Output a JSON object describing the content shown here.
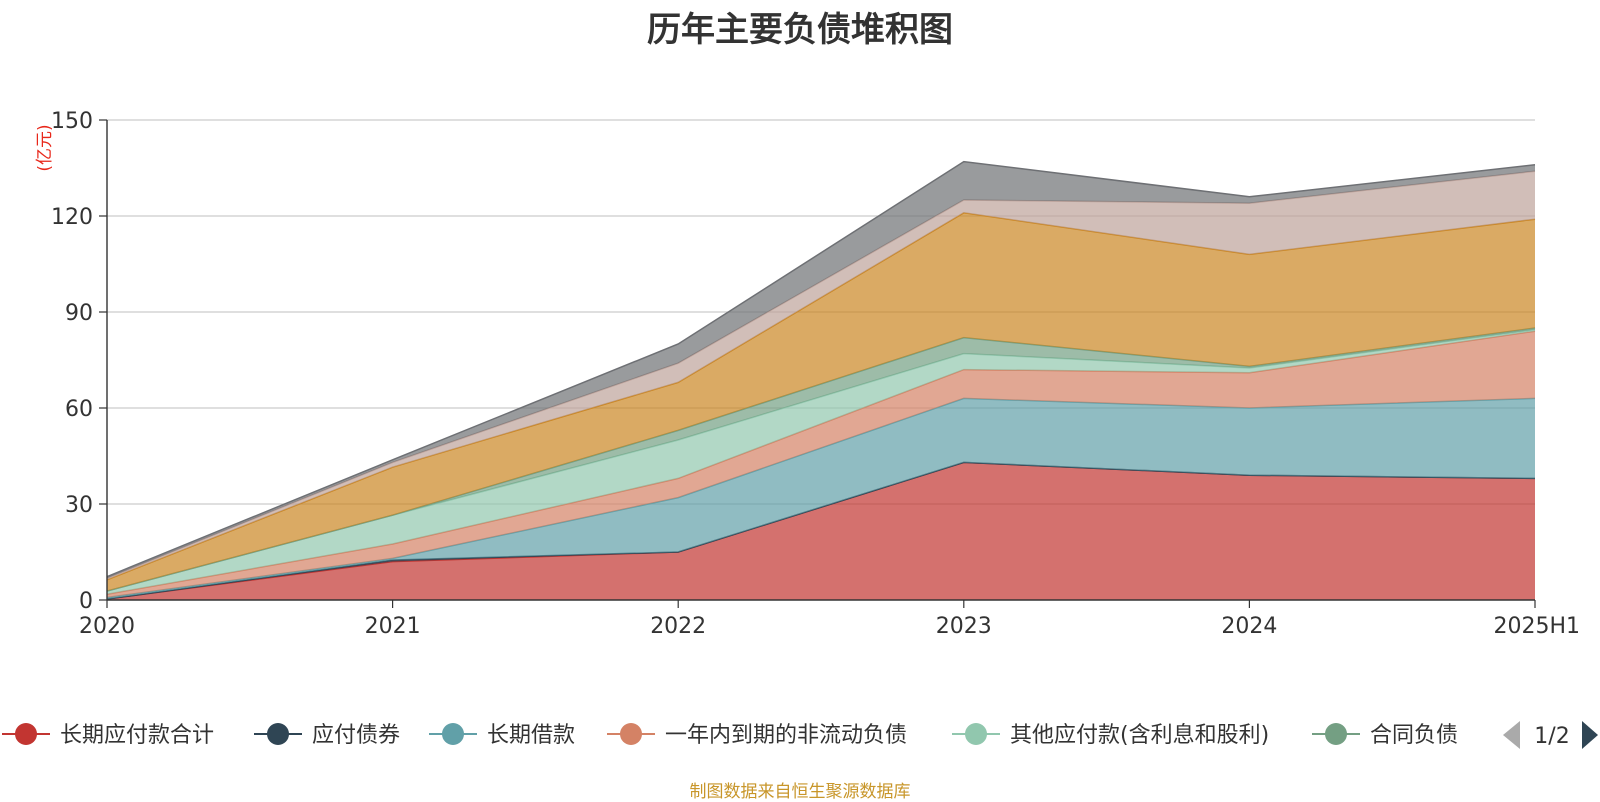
{
  "chart_data": {
    "type": "area",
    "stacked": true,
    "title": "历年主要负债堆积图",
    "ylabel": "(亿元)",
    "xlabel": "",
    "categories": [
      "2020",
      "2021",
      "2022",
      "2023",
      "2024",
      "2025H1"
    ],
    "ylim": [
      0,
      150
    ],
    "yticks": [
      0,
      30,
      60,
      90,
      120,
      150
    ],
    "grid": true,
    "legend_position": "bottom",
    "legend_page": "1/2",
    "series": [
      {
        "name": "长期应付款合计",
        "color": "#c23531",
        "values": [
          0.3,
          12,
          15,
          43,
          39,
          38
        ]
      },
      {
        "name": "应付债券",
        "color": "#2f4554",
        "values": [
          0,
          0.5,
          0,
          0,
          0,
          0
        ]
      },
      {
        "name": "长期借款",
        "color": "#61a0a8",
        "values": [
          0.5,
          0.5,
          17,
          20,
          21,
          25
        ]
      },
      {
        "name": "一年内到期的非流动负债",
        "color": "#d48265",
        "values": [
          1,
          4.5,
          6,
          9,
          11,
          21
        ]
      },
      {
        "name": "其他应付款(含利息和股利)",
        "color": "#91c7ae",
        "values": [
          1,
          9,
          12,
          5,
          1.5,
          0.5
        ]
      },
      {
        "name": "合同负债",
        "color": "#749f83",
        "values": [
          0,
          0,
          3,
          5,
          0.5,
          0.5
        ]
      },
      {
        "name": "",
        "color": "#ca8622",
        "values": [
          3.5,
          15,
          15,
          39,
          35,
          34
        ]
      },
      {
        "name": "",
        "color": "#bda29a",
        "values": [
          0.5,
          1.5,
          6,
          4,
          16,
          15
        ]
      },
      {
        "name": "",
        "color": "#6e7074",
        "values": [
          0.5,
          0.8,
          6,
          12,
          2,
          2
        ]
      }
    ]
  },
  "footer": {
    "source": "制图数据来自恒生聚源数据库"
  }
}
